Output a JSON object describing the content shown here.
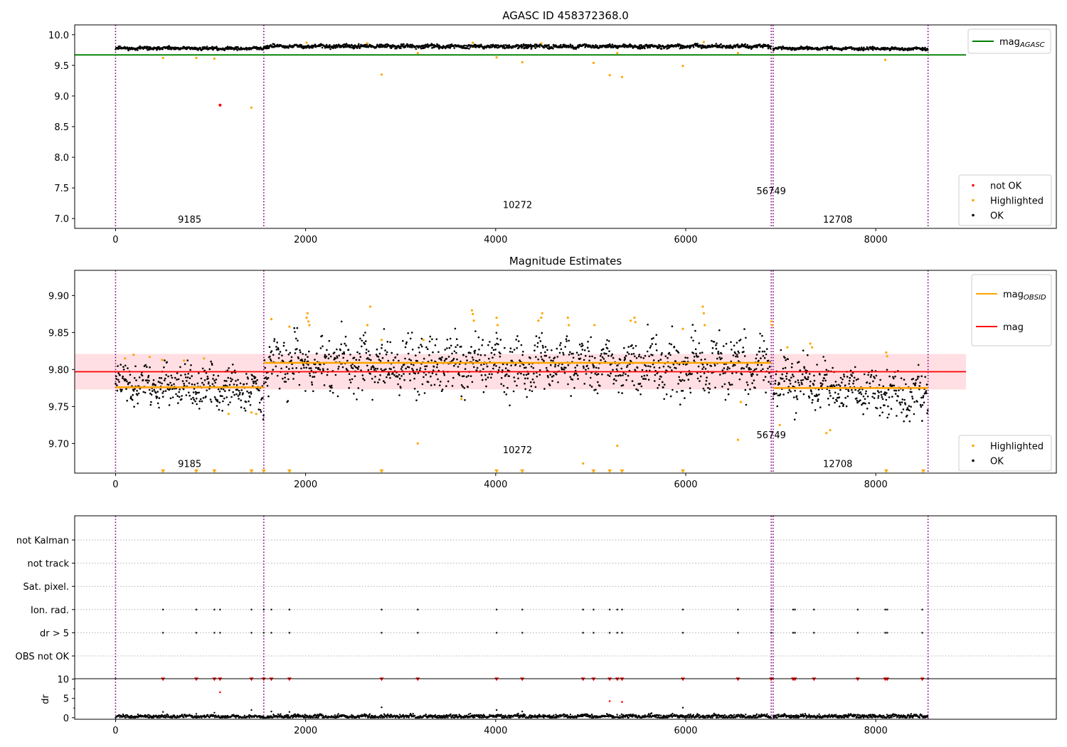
{
  "chart_data": [
    {
      "type": "scatter",
      "title": "AGASC ID 458372368.0",
      "xlabel": "",
      "ylabel": "",
      "xlim": [
        -430,
        9900
      ],
      "ylim": [
        6.84,
        10.16
      ],
      "xticks": [
        0,
        2000,
        4000,
        6000,
        8000
      ],
      "yticks": [
        7.0,
        7.5,
        8.0,
        8.5,
        9.0,
        9.5,
        10.0
      ],
      "ytick_decimals": 1,
      "grid": false,
      "legend_position": "top-right",
      "obsid_bounds": [
        0,
        1560,
        6900,
        6920,
        8550
      ],
      "obsid_labels": [
        {
          "text": "9185",
          "x": 780,
          "y": 6.93
        },
        {
          "text": "10272",
          "x": 4230,
          "y": 7.17
        },
        {
          "text": "56749",
          "x": 6900,
          "y": 7.4
        },
        {
          "text": "12708",
          "x": 7600,
          "y": 6.93
        }
      ],
      "lines": [
        {
          "name": "mag_AGASC",
          "x": [
            -430,
            8950
          ],
          "y": [
            9.67,
            9.67
          ],
          "color": "#008000"
        }
      ],
      "legend_upper": [
        {
          "name": "mag",
          "sub": "AGASC",
          "color": "#008000",
          "kind": "line"
        }
      ],
      "legend_lower": [
        {
          "name": "not OK",
          "color": "#ff0000",
          "kind": "dot"
        },
        {
          "name": "Highlighted",
          "color": "#ffa500",
          "kind": "dot"
        },
        {
          "name": "OK",
          "color": "#000000",
          "kind": "dot"
        }
      ],
      "series": [
        {
          "name": "not OK",
          "color": "#ff0000",
          "x": [
            1100
          ],
          "y": [
            8.85
          ]
        },
        {
          "name": "Highlighted",
          "color": "#ffa500",
          "x": [
            500,
            850,
            1040,
            1430,
            2800,
            3180,
            4010,
            4280,
            5030,
            5200,
            5280,
            5330,
            5970,
            6550,
            8100,
            2010,
            2650,
            3760,
            4480,
            6190
          ],
          "y": [
            9.62,
            9.62,
            9.61,
            8.81,
            9.35,
            9.7,
            9.63,
            9.55,
            9.54,
            9.34,
            9.7,
            9.31,
            9.49,
            9.7,
            9.59,
            9.87,
            9.86,
            9.87,
            9.86,
            9.88
          ]
        },
        {
          "name": "OK",
          "color": "#000000",
          "segments": [
            {
              "x0": 0,
              "x1": 1560,
              "y0": 9.78,
              "y1": 9.775,
              "amp": 0.012
            },
            {
              "x0": 1560,
              "x1": 6900,
              "y0": 9.81,
              "y1": 9.81,
              "amp": 0.015
            },
            {
              "x0": 6920,
              "x1": 8550,
              "y0": 9.78,
              "y1": 9.77,
              "amp": 0.012
            }
          ]
        }
      ]
    },
    {
      "type": "scatter",
      "title": "Magnitude Estimates",
      "xlabel": "",
      "ylabel": "",
      "xlim": [
        -430,
        9900
      ],
      "ylim": [
        9.66,
        9.934
      ],
      "xticks": [
        0,
        2000,
        4000,
        6000,
        8000
      ],
      "yticks": [
        9.7,
        9.75,
        9.8,
        9.85,
        9.9
      ],
      "ytick_decimals": 2,
      "grid": false,
      "legend_position": "top-right",
      "obsid_bounds": [
        0,
        1560,
        6900,
        6920,
        8550
      ],
      "obsid_labels": [
        {
          "text": "9185",
          "x": 780,
          "y": 9.668
        },
        {
          "text": "10272",
          "x": 4230,
          "y": 9.687
        },
        {
          "text": "56749",
          "x": 6900,
          "y": 9.707
        },
        {
          "text": "12708",
          "x": 7600,
          "y": 9.668
        }
      ],
      "band": {
        "x0": -430,
        "x1": 8950,
        "y0": 9.773,
        "y1": 9.821,
        "color": "#ffc0c8"
      },
      "lines": [
        {
          "name": "mag",
          "x": [
            -430,
            8950
          ],
          "y": [
            9.797,
            9.797
          ],
          "color": "#ff0000"
        },
        {
          "name": "mag_OBSID 9185",
          "x": [
            0,
            1560
          ],
          "y": [
            9.776,
            9.776
          ],
          "color": "#ffa500"
        },
        {
          "name": "mag_OBSID 10272",
          "x": [
            1560,
            6900
          ],
          "y": [
            9.809,
            9.809
          ],
          "color": "#ffa500"
        },
        {
          "name": "mag_OBSID 12708",
          "x": [
            6920,
            8550
          ],
          "y": [
            9.775,
            9.775
          ],
          "color": "#ffa500"
        }
      ],
      "legend_upper": [
        {
          "name": "mag",
          "sub": "OBSID",
          "color": "#ffa500",
          "kind": "line"
        },
        {
          "name": "mag",
          "sub": "",
          "color": "#ff0000",
          "kind": "line"
        }
      ],
      "legend_lower": [
        {
          "name": "Highlighted",
          "color": "#ffa500",
          "kind": "dot"
        },
        {
          "name": "OK",
          "color": "#000000",
          "kind": "dot"
        }
      ],
      "series": [
        {
          "name": "Highlighted",
          "color": "#ffa500",
          "x": [
            100,
            190,
            360,
            490,
            720,
            930,
            1190,
            1430,
            1480,
            1640,
            1830,
            2010,
            2020,
            2030,
            2040,
            2650,
            2680,
            2800,
            3180,
            3240,
            3640,
            3750,
            3760,
            3770,
            4010,
            4020,
            4450,
            4480,
            4490,
            4760,
            4770,
            4920,
            5040,
            5280,
            5420,
            5460,
            5470,
            5970,
            6180,
            6190,
            6200,
            6550,
            6580,
            6900,
            6910,
            6990,
            7070,
            7310,
            7330,
            7480,
            7520,
            8110,
            8120
          ],
          "y": [
            9.815,
            9.82,
            9.817,
            9.813,
            9.812,
            9.815,
            9.74,
            9.742,
            9.74,
            9.868,
            9.858,
            9.87,
            9.876,
            9.865,
            9.86,
            9.86,
            9.885,
            9.84,
            9.7,
            9.84,
            9.76,
            9.88,
            9.875,
            9.866,
            9.87,
            9.86,
            9.866,
            9.87,
            9.876,
            9.87,
            9.86,
            9.673,
            9.86,
            9.697,
            9.866,
            9.87,
            9.864,
            9.855,
            9.885,
            9.876,
            9.86,
            9.705,
            9.756,
            9.865,
            9.86,
            9.725,
            9.83,
            9.835,
            9.83,
            9.714,
            9.718,
            9.823,
            9.818
          ]
        },
        {
          "name": "OK",
          "color": "#000000",
          "segments": [
            {
              "x0": 0,
              "x1": 1560,
              "y0": 9.782,
              "y1": 9.772,
              "amp": 0.013
            },
            {
              "x0": 1560,
              "x1": 6900,
              "y0": 9.808,
              "y1": 9.806,
              "amp": 0.018
            },
            {
              "x0": 6920,
              "x1": 8550,
              "y0": 9.785,
              "y1": 9.766,
              "amp": 0.015
            }
          ]
        }
      ],
      "clipped_markers": {
        "color": "#ffa500",
        "y": 9.662,
        "x": [
          500,
          850,
          1040,
          1430,
          1560,
          1830,
          2800,
          4010,
          4280,
          5030,
          5200,
          5330,
          5970,
          8110,
          8500
        ]
      }
    },
    {
      "type": "scatter",
      "title": "",
      "xlabel": "",
      "ylabel": "",
      "xlim": [
        -430,
        9900
      ],
      "ylim": [
        -0.5,
        6.5
      ],
      "grid": true,
      "obsid_bounds": [
        0,
        1560,
        6900,
        6920,
        8550
      ],
      "flag_categories": [
        "not Kalman",
        "not track",
        "Sat. pixel.",
        "Ion. rad.",
        "dr > 5",
        "OBS not OK"
      ],
      "flag_points": [
        {
          "category": "Ion. rad.",
          "x": [
            500,
            850,
            1040,
            1100,
            1430,
            1560,
            1640,
            1830,
            2800,
            3180,
            4010,
            4280,
            4920,
            5030,
            5200,
            5280,
            5330,
            5970,
            6550,
            6900,
            7130,
            7150,
            7350,
            7810,
            8100,
            8120,
            8490
          ]
        },
        {
          "category": "dr > 5",
          "x": [
            500,
            850,
            1040,
            1100,
            1430,
            1560,
            1640,
            1830,
            2800,
            3180,
            4010,
            4280,
            4920,
            5030,
            5200,
            5280,
            5330,
            5970,
            6550,
            6900,
            7130,
            7150,
            7350,
            7810,
            8100,
            8120,
            8490
          ]
        }
      ]
    },
    {
      "type": "scatter",
      "title": "",
      "xlabel": "",
      "ylabel": "dr",
      "xlim": [
        -430,
        9900
      ],
      "ylim": [
        -0.4,
        10.1
      ],
      "xticks": [
        0,
        2000,
        4000,
        6000,
        8000
      ],
      "yticks": [
        0,
        5,
        10
      ],
      "ytick_decimals": 0,
      "grid": false,
      "obsid_bounds": [
        0,
        1560,
        6900,
        6920,
        8550
      ],
      "clipped_markers": {
        "color": "#ff0000",
        "y": 9.85,
        "x": [
          500,
          850,
          1040,
          1100,
          1430,
          1560,
          1640,
          1830,
          2800,
          3180,
          4010,
          4280,
          4920,
          5030,
          5200,
          5280,
          5330,
          5970,
          6550,
          6900,
          7130,
          7150,
          7350,
          7810,
          8100,
          8120,
          8490
        ]
      },
      "series": [
        {
          "name": "dr > 5",
          "color": "#ff0000",
          "x": [
            1100,
            5200,
            5330
          ],
          "y": [
            6.6,
            4.3,
            4.1
          ]
        },
        {
          "name": "OK",
          "color": "#000000",
          "x": [
            500,
            850,
            1040,
            1430,
            1640,
            1830,
            2800,
            4010,
            4280,
            5970
          ],
          "y": [
            1.5,
            1.0,
            1.3,
            2.0,
            1.6,
            1.5,
            2.7,
            2.0,
            1.6,
            2.6
          ],
          "segments": [
            {
              "x0": 0,
              "x1": 1560,
              "y0": 0.3,
              "y1": 0.3,
              "amp": 0.2
            },
            {
              "x0": 1560,
              "x1": 6900,
              "y0": 0.35,
              "y1": 0.35,
              "amp": 0.25
            },
            {
              "x0": 6920,
              "x1": 8550,
              "y0": 0.35,
              "y1": 0.35,
              "amp": 0.25
            }
          ]
        }
      ]
    }
  ]
}
